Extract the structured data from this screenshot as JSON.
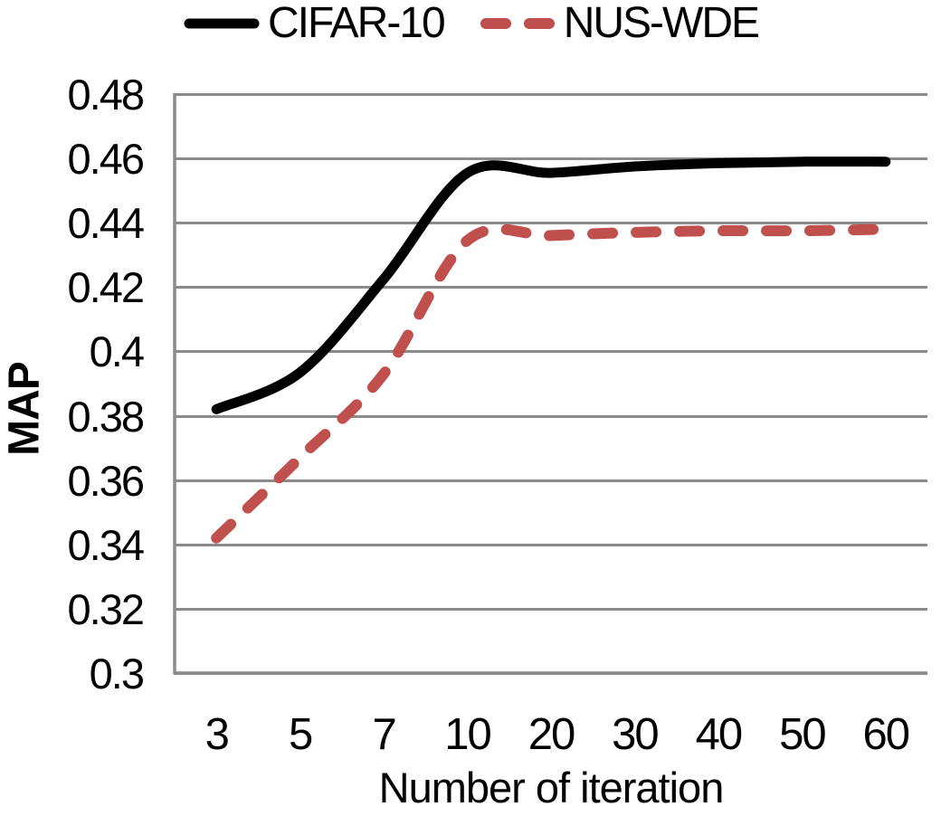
{
  "chart_data": {
    "type": "line",
    "title": "",
    "xlabel": "Number of iteration",
    "ylabel": "MAP",
    "x_axis_type": "categorical",
    "categories": [
      "3",
      "5",
      "7",
      "10",
      "20",
      "30",
      "40",
      "50",
      "60"
    ],
    "ylim": [
      0.3,
      0.48
    ],
    "y_tick_step": 0.02,
    "y_tick_labels": [
      "0.48",
      "0.46",
      "0.44",
      "0.42",
      "0.4",
      "0.38",
      "0.36",
      "0.34",
      "0.32",
      "0.3"
    ],
    "grid": true,
    "legend_position": "top-center",
    "colors": {
      "gridline": "#8a8a8a",
      "axis_line": "#8a8a8a",
      "text": "#000000",
      "background": "#ffffff",
      "cifar10": "#000000",
      "nuswde": "#C0504D"
    },
    "series": [
      {
        "name": "CIFAR-10",
        "color": "#000000",
        "line_style": "solid",
        "smooth": true,
        "values": [
          0.382,
          0.3935,
          0.4225,
          0.4555,
          0.4555,
          0.4575,
          0.4585,
          0.459,
          0.459
        ]
      },
      {
        "name": "NUS-WDE",
        "color": "#C0504D",
        "line_style": "dashed",
        "smooth": true,
        "values": [
          0.342,
          0.367,
          0.393,
          0.4345,
          0.436,
          0.437,
          0.4375,
          0.4375,
          0.438
        ]
      }
    ]
  }
}
